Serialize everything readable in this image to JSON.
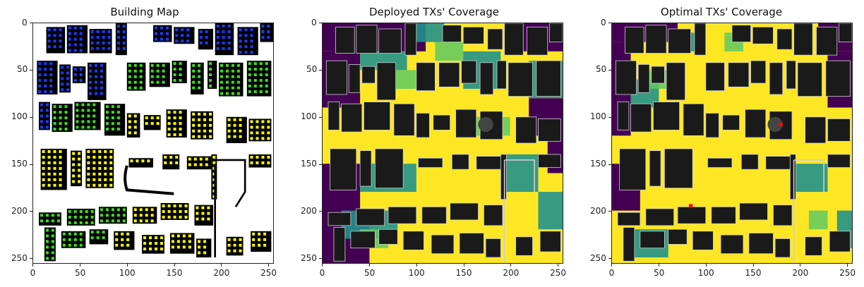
{
  "chart_data": [
    {
      "type": "heatmap",
      "title": "Building Map",
      "xlim": [
        0,
        256
      ],
      "ylim": [
        256,
        0
      ],
      "xticks": [
        "0",
        "50",
        "100",
        "150",
        "200",
        "250"
      ],
      "yticks": [
        "0",
        "50",
        "100",
        "150",
        "200",
        "250"
      ],
      "colors": {
        "background": "#ffffff",
        "building": "#000000",
        "dot_blue": "#1b3cff",
        "dot_cyan": "#1fc8e8",
        "dot_green": "#3be016",
        "dot_yellow": "#ffff00"
      }
    },
    {
      "type": "heatmap",
      "title": "Deployed TXs' Coverage",
      "xlim": [
        0,
        256
      ],
      "ylim": [
        256,
        0
      ],
      "xticks": [
        "0",
        "50",
        "100",
        "150",
        "200",
        "250"
      ],
      "yticks": [
        "0",
        "50",
        "100",
        "150",
        "200",
        "250"
      ],
      "colors": {
        "high": "#fde725",
        "mid_high": "#5ec962",
        "mid": "#21918c",
        "low": "#440154",
        "building": "#1a1a1a"
      }
    },
    {
      "type": "heatmap",
      "title": "Optimal TXs' Coverage",
      "xlim": [
        0,
        256
      ],
      "ylim": [
        256,
        0
      ],
      "xticks": [
        "0",
        "50",
        "100",
        "150",
        "200",
        "250"
      ],
      "yticks": [
        "0",
        "50",
        "100",
        "150",
        "200",
        "250"
      ],
      "colors": {
        "high": "#fde725",
        "mid_high": "#5ec962",
        "mid": "#21918c",
        "low": "#440154",
        "building": "#1a1a1a",
        "tx": "#ff0000"
      },
      "transmitters": [
        {
          "x": 180,
          "y": 108
        },
        {
          "x": 84,
          "y": 195
        }
      ]
    }
  ]
}
